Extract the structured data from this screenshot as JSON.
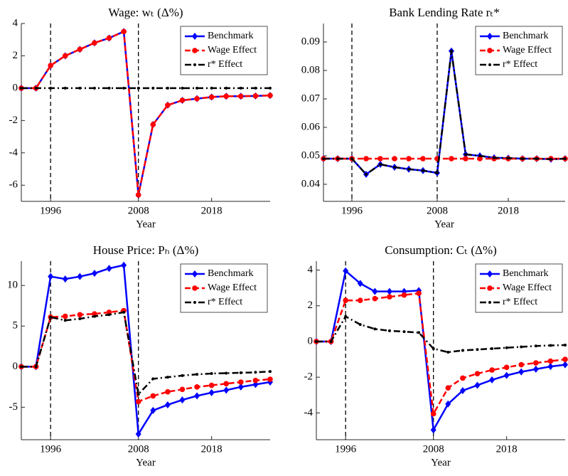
{
  "chart_data": [
    {
      "type": "line",
      "title": "Wage: wₜ (Δ%)",
      "xlabel": "Year",
      "x": [
        1992,
        1994,
        1996,
        1998,
        2000,
        2002,
        2004,
        2006,
        2008,
        2010,
        2012,
        2014,
        2016,
        2018,
        2020,
        2022,
        2024,
        2026
      ],
      "xlim": [
        1992,
        2026
      ],
      "xticks": [
        1996,
        2008,
        2018
      ],
      "ylim": [
        -7,
        4
      ],
      "yticks": [
        -6,
        -4,
        -2,
        0,
        2,
        4
      ],
      "vlines": [
        1996,
        2008
      ],
      "legend": "upper right",
      "grid": false,
      "series": [
        {
          "name": "Benchmark",
          "color": "#0000ff",
          "line_style": "solid",
          "marker": "diamond",
          "values": [
            0,
            0,
            1.4,
            2.0,
            2.4,
            2.8,
            3.1,
            3.5,
            -6.6,
            -2.25,
            -1.05,
            -0.75,
            -0.65,
            -0.55,
            -0.5,
            -0.5,
            -0.48,
            -0.45
          ]
        },
        {
          "name": "Wage Effect",
          "color": "#ff0000",
          "line_style": "dashed",
          "marker": "circle",
          "values": [
            0,
            0,
            1.4,
            2.0,
            2.4,
            2.8,
            3.1,
            3.5,
            -6.6,
            -2.25,
            -1.05,
            -0.75,
            -0.65,
            -0.55,
            -0.5,
            -0.5,
            -0.48,
            -0.45
          ]
        },
        {
          "name": "r* Effect",
          "color": "#000000",
          "line_style": "dashdot",
          "marker": "point",
          "values": [
            0,
            0,
            0,
            0,
            0,
            0,
            0,
            0,
            0,
            0,
            0,
            0,
            0,
            0,
            0,
            0,
            0,
            0
          ]
        }
      ]
    },
    {
      "type": "line",
      "title": "Bank Lending Rate rₜ*",
      "xlabel": "Year",
      "x": [
        1992,
        1994,
        1996,
        1998,
        2000,
        2002,
        2004,
        2006,
        2008,
        2010,
        2012,
        2014,
        2016,
        2018,
        2020,
        2022,
        2024,
        2026
      ],
      "xlim": [
        1992,
        2026
      ],
      "xticks": [
        1996,
        2008,
        2018
      ],
      "ylim": [
        0.034,
        0.0965
      ],
      "yticks": [
        0.04,
        0.05,
        0.06,
        0.07,
        0.08,
        0.09
      ],
      "vlines": [
        1996,
        2008
      ],
      "legend": "upper right",
      "grid": false,
      "series": [
        {
          "name": "Benchmark",
          "color": "#0000ff",
          "line_style": "solid",
          "marker": "diamond",
          "values": [
            0.049,
            0.049,
            0.049,
            0.0435,
            0.047,
            0.046,
            0.0453,
            0.0448,
            0.044,
            0.0868,
            0.0505,
            0.05,
            0.0493,
            0.0492,
            0.049,
            0.049,
            0.0488,
            0.049
          ]
        },
        {
          "name": "Wage Effect",
          "color": "#ff0000",
          "line_style": "dashed",
          "marker": "circle",
          "values": [
            0.049,
            0.049,
            0.049,
            0.049,
            0.049,
            0.049,
            0.049,
            0.049,
            0.049,
            0.049,
            0.049,
            0.049,
            0.049,
            0.049,
            0.049,
            0.049,
            0.049,
            0.049
          ]
        },
        {
          "name": "r* Effect",
          "color": "#000000",
          "line_style": "dashdot",
          "marker": "point",
          "values": [
            0.049,
            0.049,
            0.049,
            0.0435,
            0.047,
            0.046,
            0.0453,
            0.0448,
            0.044,
            0.0868,
            0.0505,
            0.05,
            0.0493,
            0.0492,
            0.049,
            0.049,
            0.0488,
            0.049
          ]
        }
      ]
    },
    {
      "type": "line",
      "title": "House Price: Pₕ (Δ%)",
      "xlabel": "Year",
      "x": [
        1992,
        1994,
        1996,
        1998,
        2000,
        2002,
        2004,
        2006,
        2008,
        2010,
        2012,
        2014,
        2016,
        2018,
        2020,
        2022,
        2024,
        2026
      ],
      "xlim": [
        1992,
        2026
      ],
      "xticks": [
        1996,
        2008,
        2018
      ],
      "ylim": [
        -9,
        13
      ],
      "yticks": [
        -5,
        0,
        5,
        10
      ],
      "vlines": [
        1996,
        2008
      ],
      "legend": "upper right",
      "grid": false,
      "series": [
        {
          "name": "Benchmark",
          "color": "#0000ff",
          "line_style": "solid",
          "marker": "diamond",
          "values": [
            0,
            0,
            11.1,
            10.8,
            11.1,
            11.5,
            12.1,
            12.5,
            -8.3,
            -5.4,
            -4.7,
            -4.1,
            -3.6,
            -3.2,
            -2.9,
            -2.5,
            -2.2,
            -1.9
          ]
        },
        {
          "name": "Wage Effect",
          "color": "#ff0000",
          "line_style": "dashed",
          "marker": "circle",
          "values": [
            0,
            0,
            6.1,
            6.2,
            6.4,
            6.5,
            6.7,
            6.9,
            -4.3,
            -3.6,
            -3.1,
            -2.8,
            -2.5,
            -2.3,
            -2.1,
            -1.9,
            -1.7,
            -1.55
          ]
        },
        {
          "name": "r* Effect",
          "color": "#000000",
          "line_style": "dashdot",
          "marker": "point",
          "values": [
            0,
            0,
            6.1,
            5.7,
            5.9,
            6.2,
            6.4,
            6.7,
            -3.4,
            -1.5,
            -1.3,
            -1.1,
            -0.95,
            -0.85,
            -0.8,
            -0.75,
            -0.7,
            -0.6
          ]
        }
      ]
    },
    {
      "type": "line",
      "title": "Consumption: Cₜ (Δ%)",
      "xlabel": "Year",
      "x": [
        1992,
        1994,
        1996,
        1998,
        2000,
        2002,
        2004,
        2006,
        2008,
        2010,
        2012,
        2014,
        2016,
        2018,
        2020,
        2022,
        2024,
        2026
      ],
      "xlim": [
        1992,
        2026
      ],
      "xticks": [
        1996,
        2008,
        2018
      ],
      "ylim": [
        -5.5,
        4.5
      ],
      "yticks": [
        -4,
        -2,
        0,
        2,
        4
      ],
      "vlines": [
        1996,
        2008
      ],
      "legend": "upper right",
      "grid": false,
      "series": [
        {
          "name": "Benchmark",
          "color": "#0000ff",
          "line_style": "solid",
          "marker": "diamond",
          "values": [
            0,
            0,
            3.95,
            3.25,
            2.8,
            2.8,
            2.8,
            2.85,
            -4.95,
            -3.5,
            -2.75,
            -2.45,
            -2.15,
            -1.9,
            -1.7,
            -1.55,
            -1.4,
            -1.3
          ]
        },
        {
          "name": "Wage Effect",
          "color": "#ff0000",
          "line_style": "dashed",
          "marker": "circle",
          "values": [
            0,
            0,
            2.3,
            2.3,
            2.4,
            2.5,
            2.6,
            2.7,
            -4.05,
            -2.6,
            -2.05,
            -1.8,
            -1.6,
            -1.45,
            -1.3,
            -1.2,
            -1.1,
            -1.0
          ]
        },
        {
          "name": "r* Effect",
          "color": "#000000",
          "line_style": "dashdot",
          "marker": "point",
          "values": [
            0,
            0,
            1.4,
            0.95,
            0.7,
            0.6,
            0.55,
            0.5,
            -0.4,
            -0.6,
            -0.5,
            -0.45,
            -0.4,
            -0.35,
            -0.3,
            -0.25,
            -0.22,
            -0.2
          ]
        }
      ]
    }
  ]
}
